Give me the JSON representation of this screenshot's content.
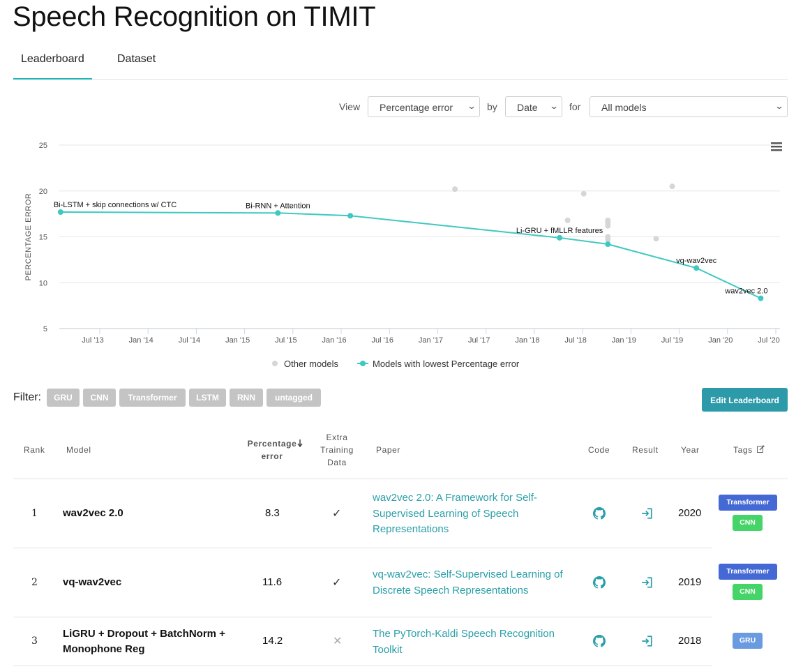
{
  "page": {
    "title": "Speech Recognition on TIMIT"
  },
  "tabs": [
    {
      "label": "Leaderboard",
      "active": true
    },
    {
      "label": "Dataset",
      "active": false
    }
  ],
  "controls": {
    "view_label": "View",
    "view_value": "Percentage error",
    "by_label": "by",
    "by_value": "Date",
    "for_label": "for",
    "for_value": "All models"
  },
  "chart_data": {
    "type": "scatter",
    "ylabel": "PERCENTAGE ERROR",
    "xlabel": "",
    "ylim": [
      5,
      25
    ],
    "yticks": [
      5,
      10,
      15,
      20,
      25
    ],
    "xticks": [
      "Jul '13",
      "Jan '14",
      "Jul '14",
      "Jan '15",
      "Jul '15",
      "Jan '16",
      "Jul '16",
      "Jan '17",
      "Jul '17",
      "Jan '18",
      "Jul '18",
      "Jan '19",
      "Jul '19",
      "Jan '20",
      "Jul '20"
    ],
    "grid": true,
    "legend_position": "bottom",
    "series": [
      {
        "name": "Other models",
        "color": "#d6d6d6",
        "points": [
          {
            "x": "2017-04",
            "y": 20.2
          },
          {
            "x": "2018-06",
            "y": 16.8
          },
          {
            "x": "2018-08",
            "y": 19.7
          },
          {
            "x": "2018-11",
            "y": 16.8
          },
          {
            "x": "2018-11",
            "y": 16.5
          },
          {
            "x": "2018-11",
            "y": 16.2
          },
          {
            "x": "2018-11",
            "y": 15.0
          },
          {
            "x": "2018-11",
            "y": 14.7
          },
          {
            "x": "2019-05",
            "y": 14.8
          },
          {
            "x": "2019-07",
            "y": 20.5
          }
        ]
      },
      {
        "name": "Models with lowest Percentage error",
        "color": "#3ec9c0",
        "points": [
          {
            "x": "2013-03",
            "y": 17.7,
            "label": "Bi-LSTM + skip connections w/ CTC"
          },
          {
            "x": "2015-06",
            "y": 17.6,
            "label": "Bi-RNN + Attention"
          },
          {
            "x": "2016-03",
            "y": 17.3
          },
          {
            "x": "2018-05",
            "y": 14.9,
            "label": "Li-GRU + fMLLR features"
          },
          {
            "x": "2018-11",
            "y": 14.2
          },
          {
            "x": "2019-10",
            "y": 11.6,
            "label": "vq-wav2vec"
          },
          {
            "x": "2020-06",
            "y": 8.3,
            "label": "wav2vec 2.0"
          }
        ]
      }
    ]
  },
  "filter": {
    "label": "Filter:",
    "chips": [
      "GRU",
      "CNN",
      "Transformer",
      "LSTM",
      "RNN",
      "untagged"
    ]
  },
  "edit_button": {
    "label": "Edit Leaderboard"
  },
  "table": {
    "headers": {
      "rank": "Rank",
      "model": "Model",
      "metric_line1": "Percentage",
      "metric_line2": "error",
      "extra_line1": "Extra",
      "extra_line2": "Training",
      "extra_line3": "Data",
      "paper": "Paper",
      "code": "Code",
      "result": "Result",
      "year": "Year",
      "tags": "Tags"
    },
    "rows": [
      {
        "rank": "1",
        "model": "wav2vec 2.0",
        "model_line2": "",
        "error": "8.3",
        "extra": "✓",
        "paper_line1": "wav2vec 2.0: A Framework for Self-",
        "paper_line2": "Supervised Learning of Speech",
        "paper_line3": "Representations",
        "year": "2020",
        "tags": [
          "Transformer",
          "CNN"
        ]
      },
      {
        "rank": "2",
        "model": "vq-wav2vec",
        "model_line2": "",
        "error": "11.6",
        "extra": "✓",
        "paper_line1": "vq-wav2vec: Self-Supervised Learning of",
        "paper_line2": "Discrete Speech Representations",
        "paper_line3": "",
        "year": "2019",
        "tags": [
          "Transformer",
          "CNN"
        ]
      },
      {
        "rank": "3",
        "model": "LiGRU + Dropout + BatchNorm +",
        "model_line2": "Monophone Reg",
        "error": "14.2",
        "extra": "✕",
        "paper_line1": "The PyTorch-Kaldi Speech Recognition",
        "paper_line2": "Toolkit",
        "paper_line3": "",
        "year": "2018",
        "tags": [
          "GRU"
        ]
      }
    ]
  },
  "icons": {
    "menu": "hamburger-menu-icon",
    "code": "github-icon",
    "result": "result-link-icon",
    "tags_edit": "edit-icon",
    "sort": "sort-down-arrow-icon"
  }
}
